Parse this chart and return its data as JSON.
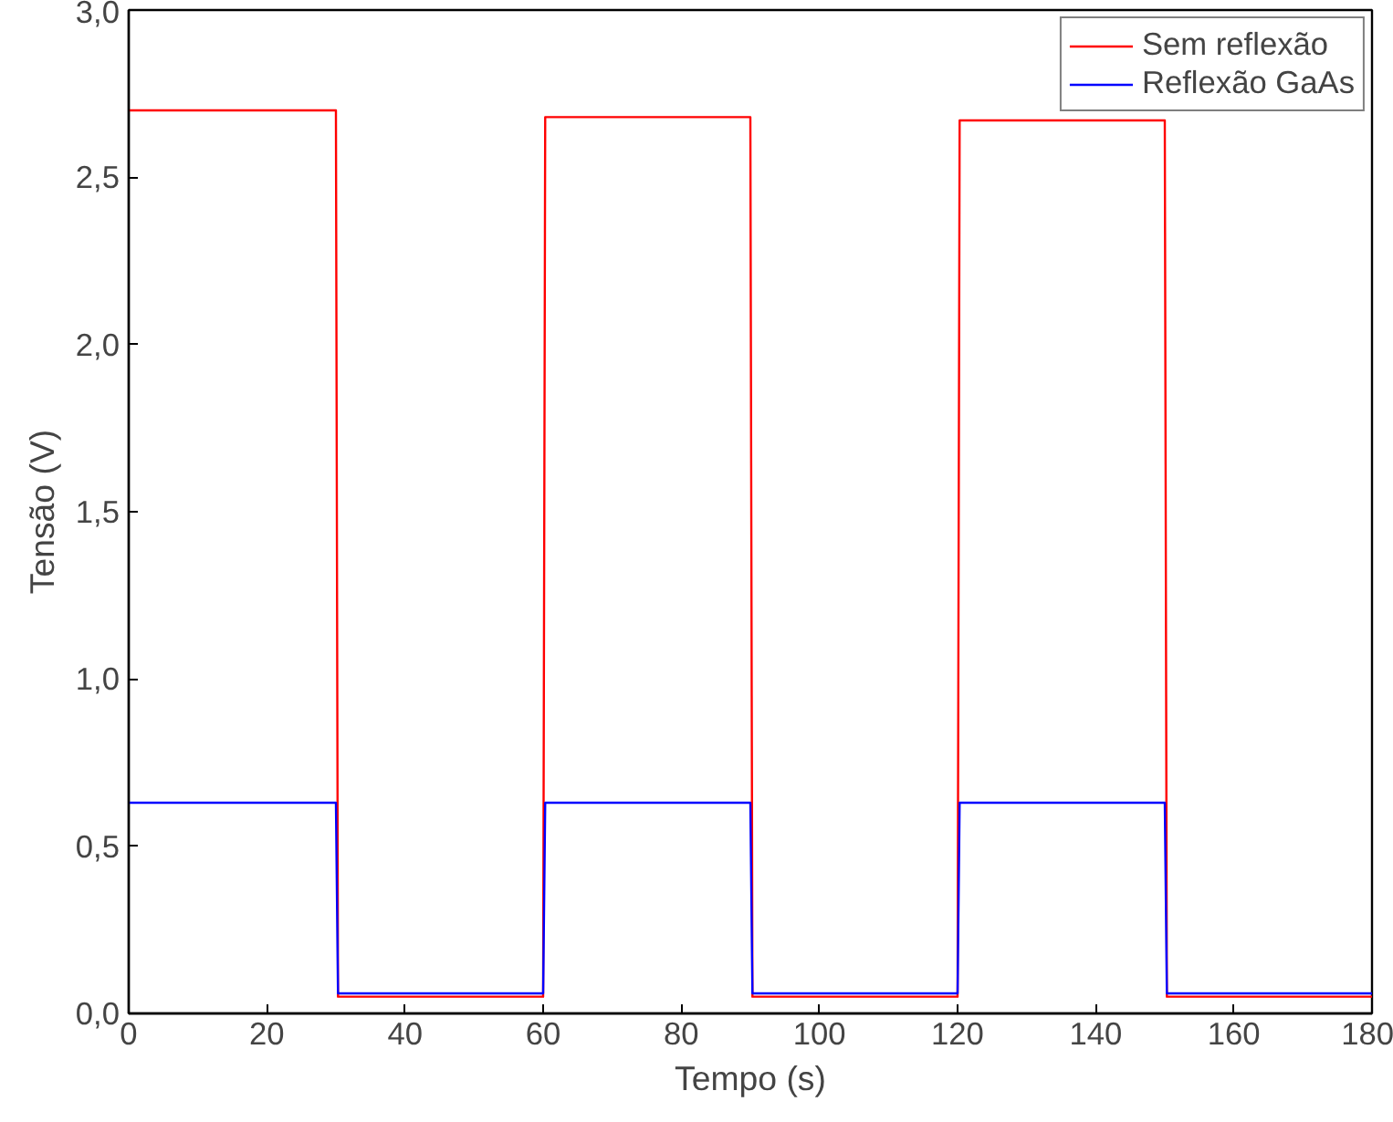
{
  "chart_data": {
    "type": "line",
    "xlabel": "Tempo (s)",
    "ylabel": "Tensão (V)",
    "xlim": [
      0,
      180
    ],
    "xticks": [
      0,
      20,
      40,
      60,
      80,
      100,
      120,
      140,
      160,
      180
    ],
    "ylim": [
      0,
      3.0
    ],
    "yticks": [
      {
        "value": 0,
        "label": "0,0"
      },
      {
        "value": 0.5,
        "label": "0,5"
      },
      {
        "value": 1.0,
        "label": "1,0"
      },
      {
        "value": 1.5,
        "label": "1,5"
      },
      {
        "value": 2.0,
        "label": "2,0"
      },
      {
        "value": 2.5,
        "label": "2,5"
      },
      {
        "value": 3.0,
        "label": "3,0"
      }
    ],
    "x": [
      0,
      30,
      30.3,
      60,
      60.3,
      90,
      90.3,
      120,
      120.3,
      150,
      150.3,
      180
    ],
    "series": [
      {
        "name": "Sem reflexão",
        "color": "#ff0000",
        "values": [
          2.7,
          2.7,
          0.05,
          0.05,
          2.68,
          2.68,
          0.05,
          0.05,
          2.67,
          2.67,
          0.05,
          0.05
        ]
      },
      {
        "name": "Reflexão GaAs",
        "color": "#0000ff",
        "values": [
          0.63,
          0.63,
          0.06,
          0.06,
          0.63,
          0.63,
          0.06,
          0.06,
          0.63,
          0.63,
          0.06,
          0.06
        ]
      }
    ],
    "grid": false,
    "legend": "top right",
    "line_style": "solid"
  }
}
